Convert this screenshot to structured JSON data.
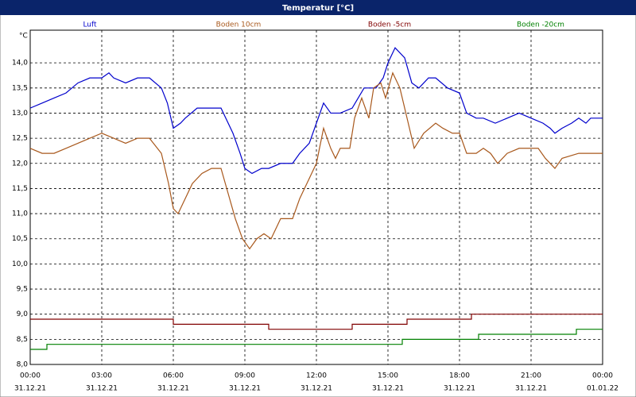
{
  "chart_data": {
    "type": "line",
    "title": "Temperatur [°C]",
    "y_unit": "°C",
    "xlim": [
      0,
      24
    ],
    "ylim": [
      8,
      14.65
    ],
    "grid": true,
    "xticks": [
      {
        "value": 0,
        "label": "00:00"
      },
      {
        "value": 3,
        "label": "03:00"
      },
      {
        "value": 6,
        "label": "06:00"
      },
      {
        "value": 9,
        "label": "09:00"
      },
      {
        "value": 12,
        "label": "12:00"
      },
      {
        "value": 15,
        "label": "15:00"
      },
      {
        "value": 18,
        "label": "18:00"
      },
      {
        "value": 21,
        "label": "21:00"
      },
      {
        "value": 24,
        "label": "00:00"
      }
    ],
    "xtick_dates": [
      "31.12.21",
      "31.12.21",
      "31.12.21",
      "31.12.21",
      "31.12.21",
      "31.12.21",
      "31.12.21",
      "31.12.21",
      "01.01.22"
    ],
    "yticks": [
      {
        "value": 8,
        "label": "8,0"
      },
      {
        "value": 8.5,
        "label": "8,5"
      },
      {
        "value": 9,
        "label": "9,0"
      },
      {
        "value": 9.5,
        "label": "9,5"
      },
      {
        "value": 10,
        "label": "10,0"
      },
      {
        "value": 10.5,
        "label": "10,5"
      },
      {
        "value": 11,
        "label": "11,0"
      },
      {
        "value": 11.5,
        "label": "11,5"
      },
      {
        "value": 12,
        "label": "12,0"
      },
      {
        "value": 12.5,
        "label": "12,5"
      },
      {
        "value": 13,
        "label": "13,0"
      },
      {
        "value": 13.5,
        "label": "13,5"
      },
      {
        "value": 14,
        "label": "14,0"
      }
    ],
    "series": [
      {
        "name": "Luft",
        "color": "#0000cc",
        "x": [
          0,
          0.5,
          1,
          1.5,
          2,
          2.5,
          3,
          3.3,
          3.5,
          4,
          4.5,
          5,
          5.5,
          5.75,
          6,
          6.3,
          6.5,
          7,
          7.5,
          8,
          8.5,
          8.8,
          9,
          9.3,
          9.7,
          10,
          10.5,
          11,
          11.3,
          11.7,
          12,
          12.3,
          12.6,
          13,
          13.5,
          14,
          14.5,
          14.8,
          15,
          15.3,
          15.7,
          16,
          16.3,
          16.7,
          17,
          17.5,
          18,
          18.3,
          18.7,
          19,
          19.5,
          20,
          20.5,
          21,
          21.5,
          21.8,
          22,
          22.3,
          22.7,
          23,
          23.3,
          23.5,
          24
        ],
        "values": [
          13.1,
          13.2,
          13.3,
          13.4,
          13.6,
          13.7,
          13.7,
          13.8,
          13.7,
          13.6,
          13.7,
          13.7,
          13.5,
          13.2,
          12.7,
          12.8,
          12.9,
          13.1,
          13.1,
          13.1,
          12.6,
          12.2,
          11.9,
          11.8,
          11.9,
          11.9,
          12.0,
          12.0,
          12.2,
          12.4,
          12.8,
          13.2,
          13.0,
          13.0,
          13.1,
          13.5,
          13.5,
          13.7,
          14.0,
          14.3,
          14.1,
          13.6,
          13.5,
          13.7,
          13.7,
          13.5,
          13.4,
          13.0,
          12.9,
          12.9,
          12.8,
          12.9,
          13.0,
          12.9,
          12.8,
          12.7,
          12.6,
          12.7,
          12.8,
          12.9,
          12.8,
          12.9,
          12.9
        ]
      },
      {
        "name": "Boden 10cm",
        "color": "#a8581c",
        "x": [
          0,
          0.5,
          1,
          1.5,
          2,
          2.5,
          3,
          3.5,
          4,
          4.5,
          5,
          5.5,
          5.8,
          6,
          6.2,
          6.5,
          6.8,
          7.2,
          7.6,
          8,
          8.3,
          8.6,
          8.9,
          9.2,
          9.5,
          9.8,
          10.1,
          10.5,
          11,
          11.3,
          11.6,
          12,
          12.3,
          12.6,
          12.8,
          13,
          13.4,
          13.6,
          13.9,
          14.2,
          14.4,
          14.7,
          14.9,
          15.2,
          15.5,
          15.8,
          16.1,
          16.5,
          17,
          17.3,
          17.7,
          18,
          18.3,
          18.7,
          19,
          19.3,
          19.6,
          20,
          20.5,
          21,
          21.3,
          21.6,
          22,
          22.3,
          23,
          24
        ],
        "values": [
          12.3,
          12.2,
          12.2,
          12.3,
          12.4,
          12.5,
          12.6,
          12.5,
          12.4,
          12.5,
          12.5,
          12.2,
          11.6,
          11.1,
          11.0,
          11.3,
          11.6,
          11.8,
          11.9,
          11.9,
          11.4,
          10.9,
          10.5,
          10.3,
          10.5,
          10.6,
          10.5,
          10.9,
          10.9,
          11.3,
          11.6,
          12.0,
          12.7,
          12.3,
          12.1,
          12.3,
          12.3,
          12.9,
          13.3,
          12.9,
          13.5,
          13.6,
          13.3,
          13.8,
          13.5,
          12.9,
          12.3,
          12.6,
          12.8,
          12.7,
          12.6,
          12.6,
          12.2,
          12.2,
          12.3,
          12.2,
          12.0,
          12.2,
          12.3,
          12.3,
          12.3,
          12.1,
          11.9,
          12.1,
          12.2,
          12.2
        ]
      },
      {
        "name": "Boden -5cm",
        "color": "#800000",
        "x": [
          0,
          6,
          6,
          10,
          10,
          13.5,
          13.5,
          15.8,
          15.8,
          18.5,
          18.5,
          24
        ],
        "values": [
          8.9,
          8.9,
          8.8,
          8.8,
          8.7,
          8.7,
          8.8,
          8.8,
          8.9,
          8.9,
          9.0,
          9.0
        ]
      },
      {
        "name": "Boden -20cm",
        "color": "#008000",
        "x": [
          0,
          0.7,
          0.7,
          15.6,
          15.6,
          18.8,
          18.8,
          22.9,
          22.9,
          24
        ],
        "values": [
          8.3,
          8.3,
          8.4,
          8.4,
          8.5,
          8.5,
          8.6,
          8.6,
          8.7,
          8.7
        ]
      }
    ]
  }
}
